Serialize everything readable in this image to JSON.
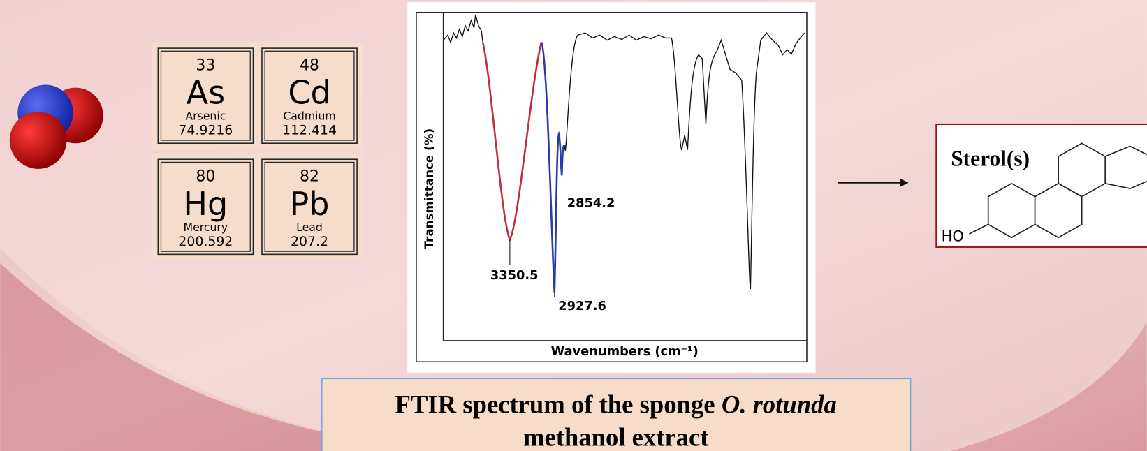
{
  "elements": [
    {
      "number": "33",
      "symbol": "As",
      "name": "Arsenic",
      "mass": "74.9216"
    },
    {
      "number": "48",
      "symbol": "Cd",
      "name": "Cadmium",
      "mass": "112.414"
    },
    {
      "number": "80",
      "symbol": "Hg",
      "name": "Mercury",
      "mass": "200.592"
    },
    {
      "number": "82",
      "symbol": "Pb",
      "name": "Lead",
      "mass": "207.2"
    }
  ],
  "spectrum": {
    "y_label": "Transmittance (%)",
    "x_label": "Wavenumbers (cm⁻¹)",
    "peaks": [
      "3350.5",
      "2927.6",
      "2854.2"
    ]
  },
  "sterol": {
    "label": "Sterol(s)",
    "group": "HO"
  },
  "caption": {
    "text_1": "FTIR spectrum of the sponge",
    "species": "O. rotunda",
    "text_2": "methanol extract"
  }
}
